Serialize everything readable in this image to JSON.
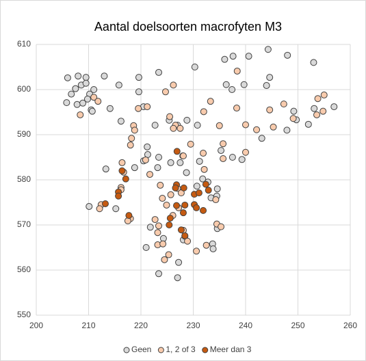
{
  "chart_data": {
    "type": "scatter",
    "title": "Aantal doelsoorten macrofyten M3",
    "xlim": [
      200,
      260
    ],
    "xticks": [
      200,
      210,
      220,
      230,
      240,
      250,
      260
    ],
    "ylim": [
      550,
      610
    ],
    "yticks": [
      550,
      560,
      570,
      580,
      590,
      600,
      610
    ],
    "grid": true,
    "legend": "bottom",
    "series": [
      {
        "name": "Geen",
        "color": "#d9d9d9",
        "x": [
          206,
          208,
          209.5,
          213,
          223.4,
          230.3,
          236,
          237.6,
          240.6,
          244.3,
          248,
          253,
          205.8,
          206.7,
          207.5,
          208.6,
          209.5,
          210.2,
          207.8,
          208.9,
          210.5,
          211,
          209.8,
          210.7,
          214.1,
          215.8,
          219.6,
          220.5,
          222.7,
          225.4,
          227,
          228.8,
          230.8,
          219.6,
          236.3,
          237.4,
          239.7,
          243.1,
          244.6,
          244,
          247.9,
          249.2,
          249.7,
          252,
          253.1,
          256.9,
          216.2,
          213.3,
          218.8,
          220.5,
          221.2,
          221.3,
          223.4,
          223.2,
          225.7,
          227.5,
          228,
          228.7,
          230.7,
          231.2,
          231.8,
          232.8,
          234.6,
          234.5,
          233.4,
          210.1,
          215.2,
          221.8,
          221,
          224.3,
          223.4,
          227,
          227.2,
          228.1,
          233.7,
          233.8,
          234.6,
          239.3,
          235.3,
          237.5
        ],
        "y": [
          602.6,
          603,
          602.7,
          603,
          603.8,
          605,
          606.7,
          607.4,
          607.4,
          608.9,
          607.6,
          606,
          597.1,
          599,
          600.2,
          601,
          601.4,
          599,
          596.7,
          597,
          595.5,
          600,
          597.9,
          595.2,
          595.8,
          601,
          599.5,
          596.2,
          592.1,
          593.2,
          592.1,
          593.2,
          592.1,
          602.7,
          601.1,
          600,
          601.1,
          589.2,
          602.7,
          600.9,
          591,
          595.2,
          593.3,
          592.3,
          595.8,
          596.2,
          593,
          582.4,
          582.7,
          584.2,
          587.3,
          585.6,
          585,
          582.7,
          583.8,
          583.8,
          585.3,
          581.6,
          578.6,
          584.1,
          580.2,
          579.5,
          578,
          576.4,
          576,
          574.1,
          573.6,
          569.5,
          565,
          567,
          559.2,
          558.3,
          561.7,
          566.7,
          565.8,
          564.7,
          569.2,
          584.5,
          586.5,
          585
        ]
      },
      {
        "name": "1, 2 of 3",
        "color": "#f8cbad",
        "x": [
          208.4,
          211,
          211.8,
          218.6,
          218.8,
          218.2,
          218,
          219.5,
          221.2,
          224.7,
          226.2,
          225.5,
          226.6,
          227.5,
          226.2,
          229.5,
          233.3,
          232,
          235,
          238.4,
          238.3,
          240,
          242.1,
          244.6,
          245.3,
          247.3,
          249.1,
          253.8,
          255,
          254.8,
          253.6,
          240,
          235.7,
          235.7,
          231.9,
          232.1,
          228.1,
          216.4,
          216.7,
          216.2,
          220.9,
          221.7,
          223.7,
          224.1,
          225.7,
          224.9,
          227,
          227.7,
          227.2,
          226.1,
          222.7,
          223.4,
          223.2,
          223.2,
          224.2,
          224.5,
          225.3,
          228.1,
          228.4,
          228.9,
          230.6,
          232.5,
          234.5,
          235.3,
          234.3,
          212.4,
          212.1,
          218,
          217.5,
          216.2
        ],
        "y": [
          594.4,
          598.3,
          597.4,
          592,
          591,
          589.2,
          587.7,
          595.8,
          596.2,
          599.5,
          601,
          594,
          592.1,
          591.4,
          591.4,
          587.9,
          597.4,
          595.1,
          592,
          604.1,
          595.9,
          592.2,
          591.1,
          595.5,
          591.7,
          596.8,
          593.6,
          598,
          598.8,
          595.2,
          594.4,
          586.1,
          588,
          584.7,
          585.9,
          582.3,
          585.3,
          583.8,
          581.7,
          578.3,
          584.4,
          581.2,
          578.8,
          575.9,
          576.7,
          574.4,
          578.1,
          577.1,
          573.8,
          572.1,
          571.2,
          569.8,
          568.3,
          565.6,
          565.8,
          562.3,
          563.4,
          568.8,
          567.5,
          566.4,
          564.2,
          565.5,
          570.2,
          569.6,
          575.6,
          574.5,
          573.6,
          571.4,
          570.9,
          577.8
        ]
      },
      {
        "name": "Meer dan 3",
        "color": "#c55a11",
        "x": [
          226.9,
          216.4,
          217.1,
          215.7,
          215.7,
          213.2,
          217.7,
          225.6,
          225.4,
          226.8,
          228.4,
          226.8,
          226.6,
          228.2,
          230.2,
          231.1,
          232.4,
          232.9,
          230.2,
          230.6,
          231.9,
          228.1,
          227.7,
          228.4
        ],
        "y": [
          586.3,
          582,
          580.2,
          577.3,
          576.4,
          574.7,
          572.1,
          571.5,
          570,
          574.3,
          574.4,
          578.9,
          578.2,
          578.2,
          576.8,
          577.1,
          579,
          577.7,
          574.5,
          573.8,
          573.2,
          572.7,
          568.9,
          567.6
        ]
      }
    ]
  }
}
